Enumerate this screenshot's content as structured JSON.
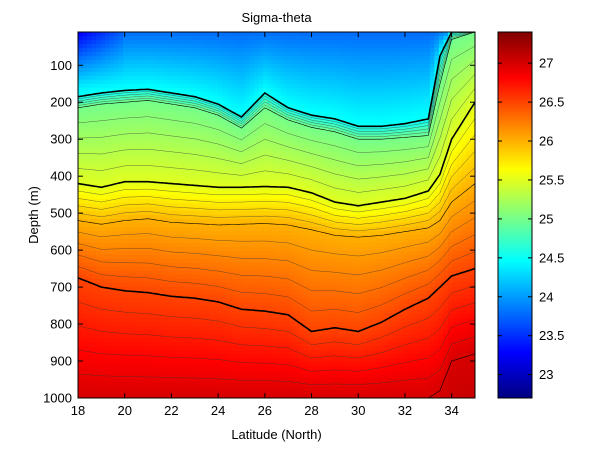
{
  "chart_data": {
    "type": "heatmap",
    "title": "Sigma-theta",
    "xlabel": "Latitude (North)",
    "ylabel": "Depth (m)",
    "xlim": [
      18,
      35
    ],
    "ylim": [
      1000,
      10
    ],
    "y_reversed": true,
    "xticks": [
      18,
      20,
      22,
      24,
      26,
      28,
      30,
      32,
      34
    ],
    "yticks": [
      100,
      200,
      300,
      400,
      500,
      600,
      700,
      800,
      900,
      1000
    ],
    "colorbar": {
      "colormap": "jet",
      "clim": [
        22.7,
        27.4
      ],
      "ticks": [
        23,
        23.5,
        24,
        24.5,
        25,
        25.5,
        26,
        26.5,
        27
      ]
    },
    "contour_interval": 0.1,
    "bold_contours": [
      24.5,
      25.5,
      26.5
    ],
    "latitudes": [
      18,
      19,
      20,
      21,
      22,
      23,
      24,
      25,
      26,
      27,
      28,
      29,
      30,
      31,
      32,
      33,
      33.5,
      34,
      35
    ],
    "isopycnals": [
      {
        "level": 24.5,
        "depth": [
          185,
          175,
          168,
          165,
          175,
          185,
          205,
          240,
          175,
          215,
          235,
          245,
          265,
          265,
          258,
          245,
          75,
          10,
          10
        ]
      },
      {
        "level": 25.0,
        "depth": [
          215,
          205,
          200,
          195,
          205,
          215,
          235,
          270,
          215,
          248,
          268,
          280,
          300,
          300,
          295,
          290,
          150,
          30,
          10
        ]
      },
      {
        "level": 25.5,
        "depth": [
          420,
          430,
          415,
          415,
          420,
          425,
          430,
          430,
          428,
          430,
          445,
          470,
          480,
          470,
          460,
          440,
          395,
          300,
          200
        ]
      },
      {
        "level": 26.0,
        "depth": [
          520,
          530,
          520,
          515,
          525,
          528,
          532,
          530,
          528,
          532,
          545,
          560,
          565,
          560,
          550,
          540,
          520,
          470,
          420
        ]
      },
      {
        "level": 26.5,
        "depth": [
          675,
          700,
          710,
          715,
          725,
          730,
          740,
          760,
          765,
          775,
          820,
          810,
          820,
          795,
          760,
          730,
          700,
          670,
          650
        ]
      },
      {
        "level": 27.0,
        "depth": [
          1000,
          1000,
          1000,
          1000,
          1000,
          1000,
          1000,
          1000,
          1000,
          1000,
          1000,
          1000,
          1000,
          1000,
          1000,
          1000,
          980,
          900,
          880
        ]
      }
    ]
  }
}
